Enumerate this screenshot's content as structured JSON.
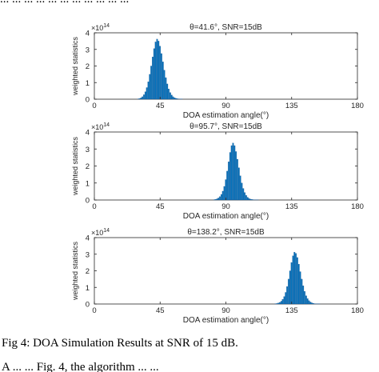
{
  "page": {
    "top_text": "... ... ... ... ... ... ... ... ... ... ...",
    "caption": "Fig 4: DOA Simulation Results at SNR of 15 dB.",
    "bottom_text": "A  ... ...   Fig. 4,  the  algorithm  ...  ..."
  },
  "colors": {
    "bars": "#0072BD",
    "axis": "#262626"
  },
  "chart_data": [
    {
      "type": "bar",
      "title": "θ=41.6°, SNR=15dB",
      "xlabel": "DOA estimation angle(°)",
      "ylabel": "weighted statistics",
      "y_exponent_label": "×10",
      "y_exponent": "14",
      "xlim": [
        0,
        180
      ],
      "ylim": [
        0,
        4
      ],
      "xticks": [
        0,
        45,
        90,
        135,
        180
      ],
      "yticks": [
        0,
        1,
        2,
        3,
        4
      ],
      "x": [
        30,
        31,
        32,
        33,
        34,
        35,
        36,
        37,
        38,
        39,
        40,
        41,
        42,
        43,
        44,
        45,
        46,
        47,
        48,
        49,
        50,
        51,
        52,
        53,
        54,
        55,
        56,
        57,
        58,
        59,
        60
      ],
      "values": [
        0.02,
        0.04,
        0.08,
        0.15,
        0.27,
        0.45,
        0.7,
        1.05,
        1.5,
        2.0,
        2.55,
        3.05,
        3.45,
        3.62,
        3.5,
        3.2,
        2.75,
        2.25,
        1.75,
        1.3,
        0.92,
        0.62,
        0.4,
        0.25,
        0.15,
        0.09,
        0.05,
        0.03,
        0.02,
        0.01,
        0.01
      ]
    },
    {
      "type": "bar",
      "title": "θ=95.7°, SNR=15dB",
      "xlabel": "DOA estimation angle(°)",
      "ylabel": "weighted statistics",
      "y_exponent_label": "×10",
      "y_exponent": "14",
      "xlim": [
        0,
        180
      ],
      "ylim": [
        0,
        4
      ],
      "xticks": [
        0,
        45,
        90,
        135,
        180
      ],
      "yticks": [
        0,
        1,
        2,
        3,
        4
      ],
      "x": [
        82,
        83,
        84,
        85,
        86,
        87,
        88,
        89,
        90,
        91,
        92,
        93,
        94,
        95,
        96,
        97,
        98,
        99,
        100,
        101,
        102,
        103,
        104,
        105,
        106,
        107,
        108,
        109,
        110,
        111,
        112
      ],
      "values": [
        0.02,
        0.04,
        0.07,
        0.12,
        0.2,
        0.33,
        0.52,
        0.8,
        1.2,
        1.7,
        2.25,
        2.8,
        3.2,
        3.35,
        3.2,
        2.85,
        2.4,
        1.9,
        1.42,
        1.0,
        0.68,
        0.44,
        0.27,
        0.16,
        0.09,
        0.05,
        0.03,
        0.02,
        0.01,
        0.01,
        0.01
      ]
    },
    {
      "type": "bar",
      "title": "θ=138.2°, SNR=15dB",
      "xlabel": "DOA estimation angle(°)",
      "ylabel": "weighted statistics",
      "y_exponent_label": "×10",
      "y_exponent": "14",
      "xlim": [
        0,
        180
      ],
      "ylim": [
        0,
        4
      ],
      "xticks": [
        0,
        45,
        90,
        135,
        180
      ],
      "yticks": [
        0,
        1,
        2,
        3,
        4
      ],
      "x": [
        124,
        125,
        126,
        127,
        128,
        129,
        130,
        131,
        132,
        133,
        134,
        135,
        136,
        137,
        138,
        139,
        140,
        141,
        142,
        143,
        144,
        145,
        146,
        147,
        148,
        149,
        150,
        151,
        152,
        153,
        154
      ],
      "values": [
        0.02,
        0.03,
        0.06,
        0.1,
        0.17,
        0.28,
        0.45,
        0.7,
        1.05,
        1.5,
        2.0,
        2.5,
        2.9,
        3.12,
        3.05,
        2.8,
        2.4,
        1.95,
        1.5,
        1.1,
        0.76,
        0.5,
        0.32,
        0.2,
        0.12,
        0.07,
        0.04,
        0.02,
        0.01,
        0.01,
        0.01
      ]
    }
  ]
}
